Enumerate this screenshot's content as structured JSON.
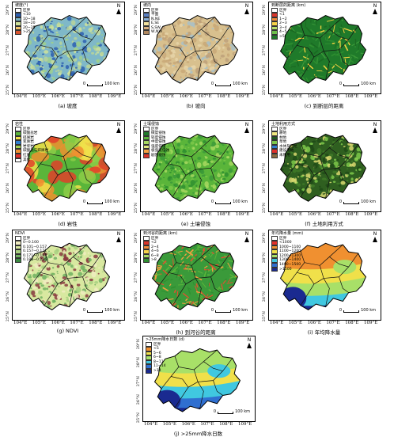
{
  "coords": {
    "lats": [
      "29°N",
      "28°N",
      "27°N",
      "26°N",
      "25°N"
    ],
    "lons": [
      "104°E",
      "105°E",
      "106°E",
      "107°E",
      "108°E",
      "109°E"
    ]
  },
  "common": {
    "north": "N",
    "scale_zero": "0",
    "scale_dist": "100 km"
  },
  "panels": [
    {
      "caption": "(a) 坡度",
      "legend_title": "坡度(°)",
      "ocean": "#2d5fb0",
      "items": [
        {
          "label": "区界",
          "color": "#ffffff"
        },
        {
          "label": "<10",
          "color": "#2d5fb0"
        },
        {
          "label": "10~18",
          "color": "#7fb8c8"
        },
        {
          "label": "18~20",
          "color": "#cfe29a"
        },
        {
          "label": "20~25",
          "color": "#f2c46a"
        },
        {
          "label": ">25",
          "color": "#d9542f"
        }
      ],
      "fill": [
        "#7fb8c8",
        "#cfe29a",
        "#2d5fb0",
        "#9fcf8c",
        "#b8d39a"
      ],
      "mode": "noise"
    },
    {
      "caption": "(b) 坡向",
      "legend_title": "坡向",
      "ocean": "#c9b48a",
      "items": [
        {
          "label": "区界",
          "color": "#ffffff"
        },
        {
          "label": "平面",
          "color": "#5a7fc0"
        },
        {
          "label": "N,NE",
          "color": "#8ab0d8"
        },
        {
          "label": "E,SE",
          "color": "#f2e2a0"
        },
        {
          "label": "S,SW",
          "color": "#d8b080"
        },
        {
          "label": "W,NW",
          "color": "#b08860"
        }
      ],
      "fill": [
        "#d8c08e",
        "#c9a878",
        "#e6d4a8",
        "#bda07a",
        "#a8c0c8"
      ],
      "mode": "noise"
    },
    {
      "caption": "(c) 到断层的距离",
      "legend_title": "到断层的距离 (km)",
      "ocean": "#2a7a2a",
      "items": [
        {
          "label": "区界",
          "color": "#ffffff"
        },
        {
          "label": "<1",
          "color": "#d9342a"
        },
        {
          "label": "1~2",
          "color": "#f08a3a"
        },
        {
          "label": "2~3",
          "color": "#f6d24a"
        },
        {
          "label": "3~4",
          "color": "#b8e06a"
        },
        {
          "label": "4~5",
          "color": "#6ec04a"
        },
        {
          "label": ">5",
          "color": "#1f7a2a"
        }
      ],
      "fill": [
        "#1f7a2a",
        "#2f8f30",
        "#1a6a22",
        "#f0d040",
        "#3c9a3a"
      ],
      "mode": "streak"
    },
    {
      "caption": "(d) 岩性",
      "legend_title": "岩性",
      "ocean": "#5ab53a",
      "items": [
        {
          "label": "区界",
          "color": "#ffffff"
        },
        {
          "label": "碳酸盐岩",
          "color": "#5ab53a"
        },
        {
          "label": "碎屑岩",
          "color": "#f0e04a"
        },
        {
          "label": "变质岩",
          "color": "#2f7fd0"
        },
        {
          "label": "岩浆岩",
          "color": "#a0d050"
        },
        {
          "label": "碳酸盐与碎屑岩",
          "color": "#f09030"
        },
        {
          "label": "红层",
          "color": "#e0302a"
        },
        {
          "label": "其他",
          "color": "#ffffff"
        }
      ],
      "fill": [
        "#5ab53a",
        "#8ccc48",
        "#f0e04a",
        "#e0402a",
        "#f09030"
      ],
      "mode": "blob"
    },
    {
      "caption": "(e) 土壤侵蚀",
      "legend_title": "土壤侵蚀",
      "ocean": "#5ab53a",
      "items": [
        {
          "label": "区界",
          "color": "#ffffff"
        },
        {
          "label": "微度侵蚀",
          "color": "#1f7a2a"
        },
        {
          "label": "轻度侵蚀",
          "color": "#5ab53a"
        },
        {
          "label": "中度侵蚀",
          "color": "#a8d860"
        },
        {
          "label": "强度侵蚀",
          "color": "#e0e880"
        },
        {
          "label": "极强度侵蚀",
          "color": "#f6a040"
        },
        {
          "label": "剧烈侵蚀",
          "color": "#d9342a"
        }
      ],
      "fill": [
        "#5ab53a",
        "#2f8f30",
        "#7cc84a",
        "#a8d860",
        "#3c9a3a"
      ],
      "mode": "noise"
    },
    {
      "caption": "(f) 土地利用方式",
      "legend_title": "土地利用方式",
      "ocean": "#2f5f20",
      "items": [
        {
          "label": "区界",
          "color": "#ffffff"
        },
        {
          "label": "耕地",
          "color": "#f0e880"
        },
        {
          "label": "林地",
          "color": "#1f5a20"
        },
        {
          "label": "草地",
          "color": "#7cc84a"
        },
        {
          "label": "水体及湿地",
          "color": "#2f7fd0"
        },
        {
          "label": "建设用地",
          "color": "#e0302a"
        },
        {
          "label": "未利用",
          "color": "#8a6a40"
        }
      ],
      "fill": [
        "#2f5f20",
        "#3f7a28",
        "#1f4a18",
        "#7cc84a",
        "#d8d870"
      ],
      "mode": "noise"
    },
    {
      "caption": "(g) NDVI",
      "legend_title": "NDVI",
      "ocean": "#f0ecc0",
      "items": [
        {
          "label": "区界",
          "color": "#ffffff"
        },
        {
          "label": "0~0.100",
          "color": "#f0ecc0"
        },
        {
          "label": "0.101~0.157",
          "color": "#d8e8a0"
        },
        {
          "label": "0.157~0.171",
          "color": "#a8d080"
        },
        {
          "label": "0.171~0.183",
          "color": "#70b060"
        },
        {
          "label": "0.183~0.226",
          "color": "#3a8a40"
        }
      ],
      "fill": [
        "#d8e8a0",
        "#a8d080",
        "#f0ecc0",
        "#70b060",
        "#8a3a40"
      ],
      "mode": "noise"
    },
    {
      "caption": "(h) 到河谷的距离",
      "legend_title": "到河谷的距离 (km)",
      "ocean": "#3a9a3a",
      "items": [
        {
          "label": "区界",
          "color": "#ffffff"
        },
        {
          "label": "<2",
          "color": "#d9342a"
        },
        {
          "label": "2~4",
          "color": "#f08a3a"
        },
        {
          "label": "4~6",
          "color": "#f6d24a"
        },
        {
          "label": "6~8",
          "color": "#a8d860"
        },
        {
          "label": ">8",
          "color": "#2f8f30"
        }
      ],
      "fill": [
        "#3a9a3a",
        "#e05030",
        "#2f8f30",
        "#f0a040",
        "#5ab53a"
      ],
      "mode": "streak"
    },
    {
      "caption": "(i) 年均降水量",
      "legend_title": "年均降水量 (mm)",
      "ocean": "#e8e8e8",
      "items": [
        {
          "label": "区界",
          "color": "#ffffff"
        },
        {
          "label": "<1000",
          "color": "#e0302a"
        },
        {
          "label": "1000~1100",
          "color": "#f09030"
        },
        {
          "label": "1100~1200",
          "color": "#f0e04a"
        },
        {
          "label": "1200~1300",
          "color": "#a8e068"
        },
        {
          "label": "1300~1400",
          "color": "#40c8e0"
        },
        {
          "label": "1400~1500",
          "color": "#2f6fd0"
        },
        {
          "label": ">1500",
          "color": "#1a2a90"
        }
      ],
      "fill": [
        "#f0e04a",
        "#a8e068",
        "#f09030",
        "#40c8e0",
        "#1a2a90"
      ],
      "mode": "zone"
    },
    {
      "caption": "(j) >25mm降水日数",
      "legend_title": ">25mm降水日数 (d)",
      "ocean": "#e8e8e8",
      "items": [
        {
          "label": "区界",
          "color": "#ffffff"
        },
        {
          "label": "<5",
          "color": "#f09030"
        },
        {
          "label": "5~6",
          "color": "#f0e04a"
        },
        {
          "label": "6~8",
          "color": "#a8e068"
        },
        {
          "label": "8~11",
          "color": "#40c8e0"
        },
        {
          "label": "11~14",
          "color": "#2f6fd0"
        },
        {
          "label": ">14",
          "color": "#1a2a90"
        }
      ],
      "fill": [
        "#f0e04a",
        "#a8e068",
        "#40c8e0",
        "#f09030",
        "#1a2a90"
      ],
      "mode": "zone"
    }
  ]
}
